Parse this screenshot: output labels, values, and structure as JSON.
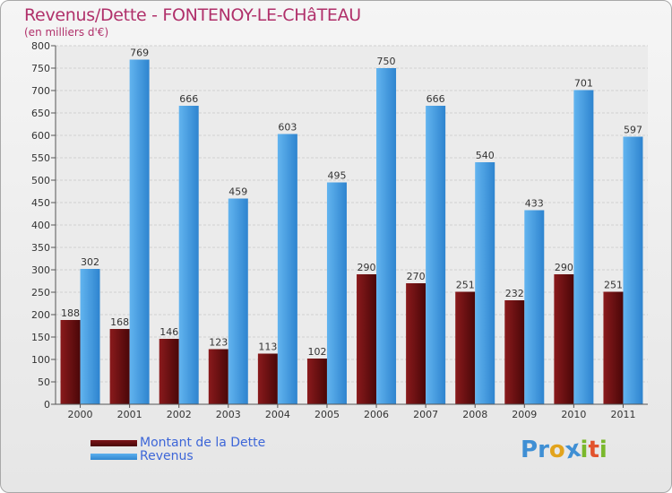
{
  "header": {
    "title": "Revenus/Dette - FONTENOY-LE-CHâTEAU",
    "subtitle": "(en milliers d'€)"
  },
  "colors": {
    "dette": "#6b0f12",
    "revenus": "#4a9fe2",
    "title": "#b0306a",
    "legend_text": "#3d66d8"
  },
  "legend": {
    "items": [
      {
        "label": "Montant de la Dette",
        "color": "#6b0f12"
      },
      {
        "label": "Revenus",
        "color": "#4a9fe2"
      }
    ]
  },
  "logo": {
    "letters": [
      "P",
      "r",
      "o",
      "x",
      "i",
      "t",
      "i"
    ],
    "colors": [
      "#3f8fd4",
      "#3f8fd4",
      "#e2a31c",
      "#3f8fd4",
      "#7ab82c",
      "#e2522c",
      "#7ab82c"
    ]
  },
  "chart_data": {
    "type": "bar",
    "title": "Revenus/Dette - FONTENOY-LE-CHâTEAU",
    "ylabel": "(en milliers d'€)",
    "categories": [
      "2000",
      "2001",
      "2002",
      "2003",
      "2004",
      "2005",
      "2006",
      "2007",
      "2008",
      "2009",
      "2010",
      "2011"
    ],
    "series": [
      {
        "name": "Montant de la Dette",
        "values": [
          188,
          168,
          146,
          123,
          113,
          102,
          290,
          270,
          251,
          232,
          290,
          251
        ],
        "color": "#6b0f12"
      },
      {
        "name": "Revenus",
        "values": [
          302,
          769,
          666,
          459,
          603,
          495,
          750,
          666,
          540,
          433,
          701,
          597
        ],
        "color": "#4a9fe2"
      }
    ],
    "ylim": [
      0,
      800
    ],
    "yticks": [
      0,
      50,
      100,
      150,
      200,
      250,
      300,
      350,
      400,
      450,
      500,
      550,
      600,
      650,
      700,
      750,
      800
    ],
    "grid": true,
    "legend_position": "bottom-left"
  }
}
